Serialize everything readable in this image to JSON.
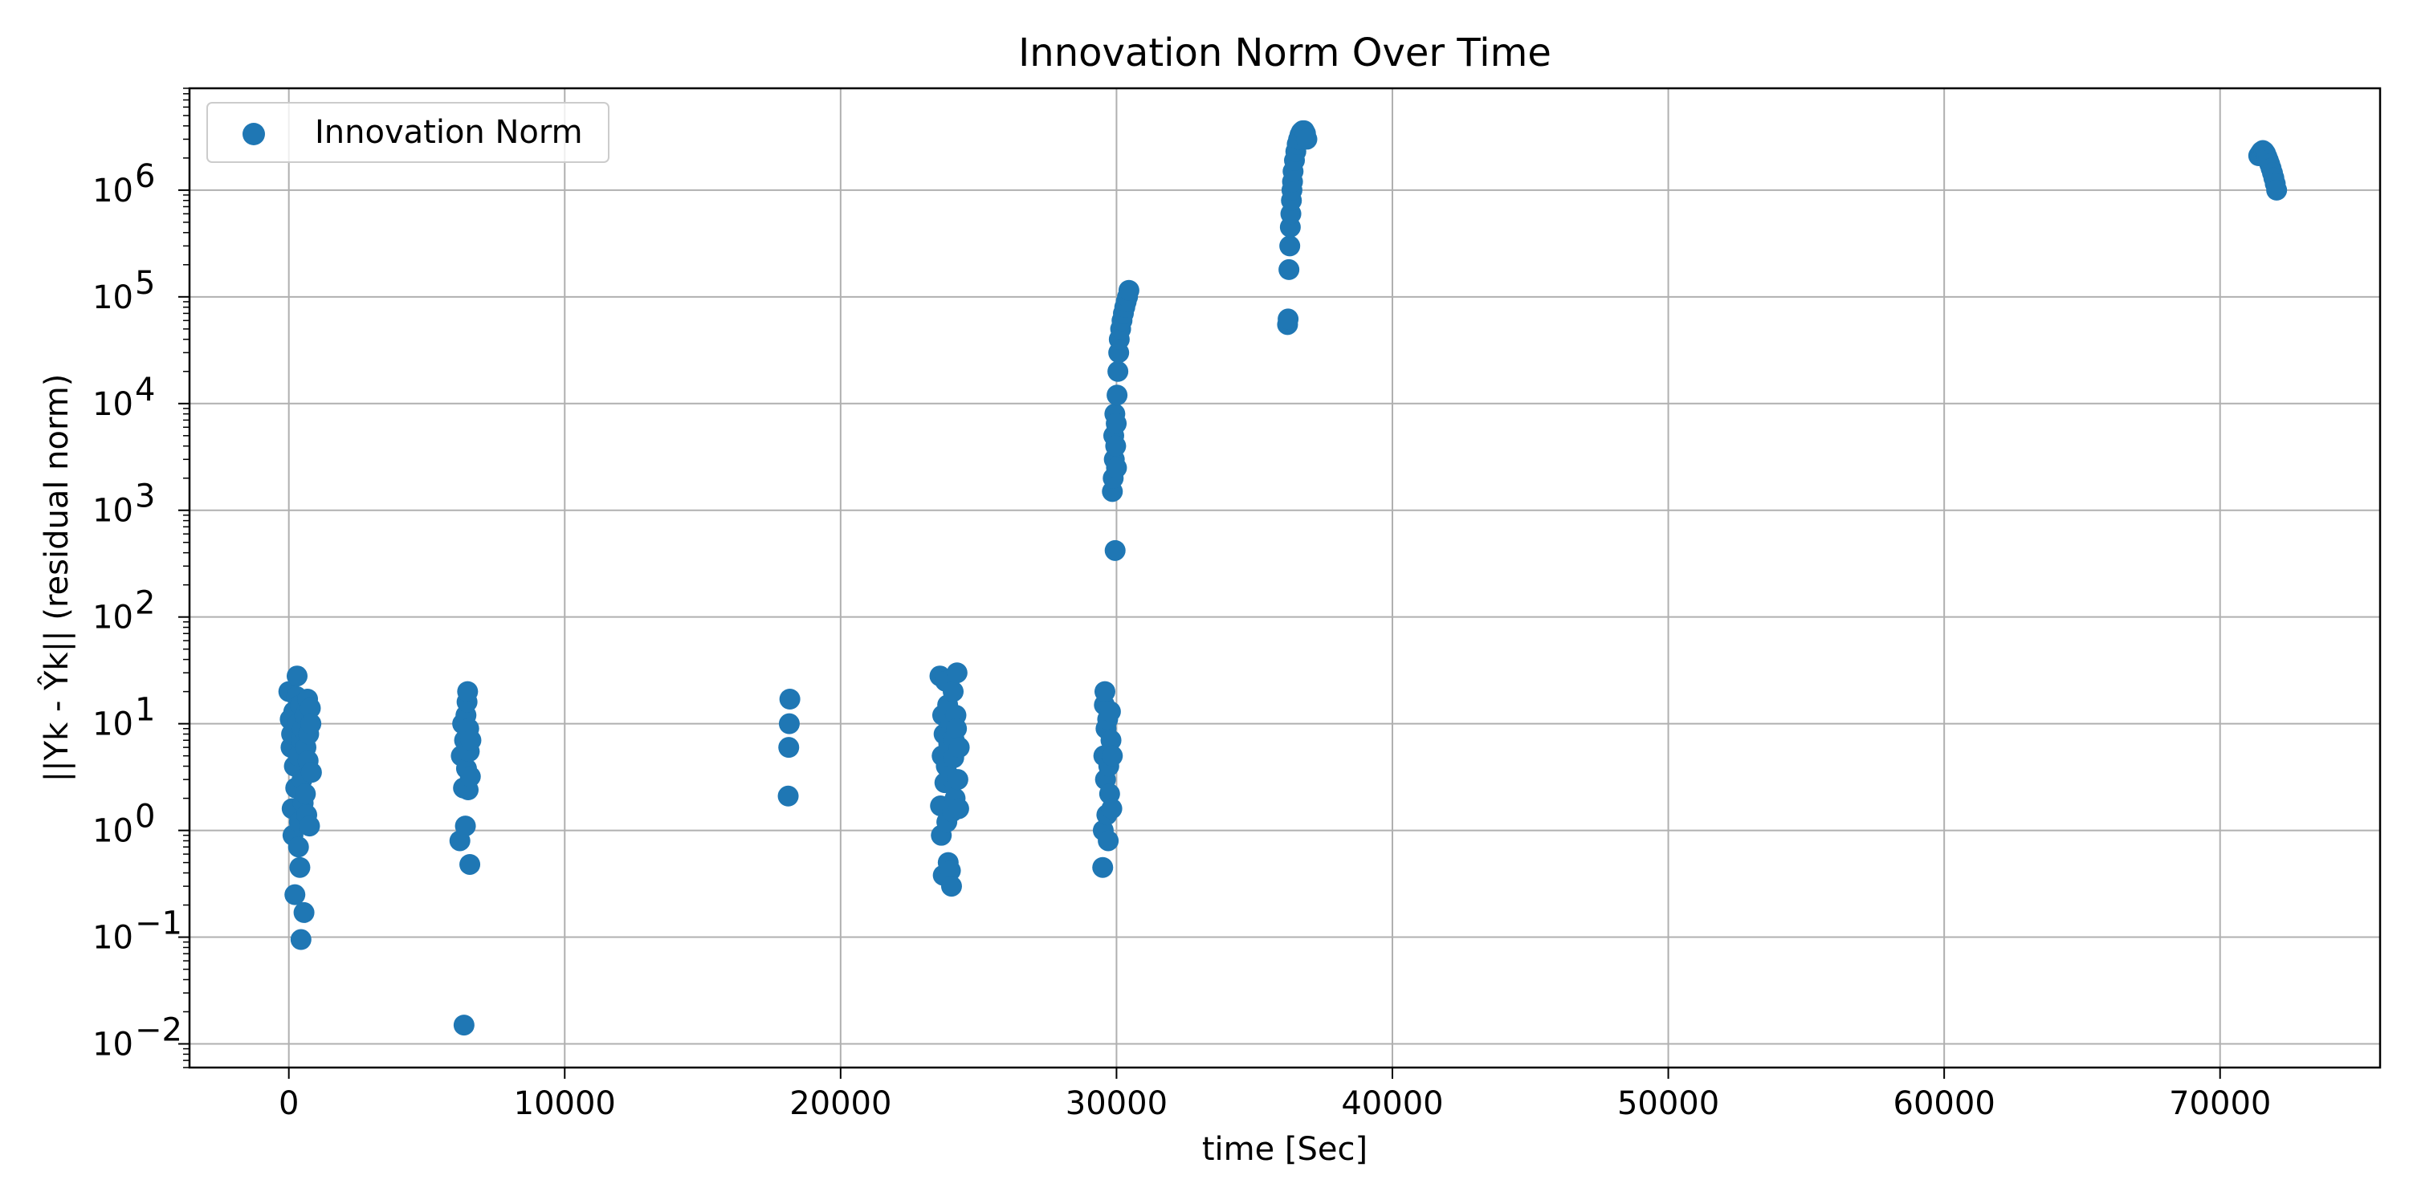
{
  "chart_data": {
    "type": "scatter",
    "title": "Innovation Norm Over Time",
    "xlabel": "time [Sec]",
    "ylabel": "||Yk - Ŷk|| (residual norm)",
    "x_scale": "linear",
    "y_scale": "log",
    "xlim": [
      -3600,
      75800
    ],
    "ylim": [
      0.006,
      9000000
    ],
    "x_ticks": [
      0,
      10000,
      20000,
      30000,
      40000,
      50000,
      60000,
      70000
    ],
    "x_tick_labels": [
      "0",
      "10000",
      "20000",
      "30000",
      "40000",
      "50000",
      "60000",
      "70000"
    ],
    "y_ticks": [
      0.01,
      0.1,
      1,
      10,
      100,
      1000,
      10000,
      100000,
      1000000
    ],
    "y_tick_labels": [
      {
        "base": "10",
        "exp": "−2"
      },
      {
        "base": "10",
        "exp": "−1"
      },
      {
        "base": "10",
        "exp": "0"
      },
      {
        "base": "10",
        "exp": "1"
      },
      {
        "base": "10",
        "exp": "2"
      },
      {
        "base": "10",
        "exp": "3"
      },
      {
        "base": "10",
        "exp": "4"
      },
      {
        "base": "10",
        "exp": "5"
      },
      {
        "base": "10",
        "exp": "6"
      }
    ],
    "grid": true,
    "legend_position": "top-left",
    "color": "#1f77b4",
    "series": [
      {
        "name": "Innovation Norm",
        "points": [
          [
            0,
            20
          ],
          [
            50,
            11
          ],
          [
            80,
            6
          ],
          [
            100,
            8
          ],
          [
            120,
            1.6
          ],
          [
            150,
            0.9
          ],
          [
            180,
            13
          ],
          [
            200,
            4
          ],
          [
            220,
            0.25
          ],
          [
            250,
            2.5
          ],
          [
            280,
            18
          ],
          [
            300,
            28
          ],
          [
            320,
            10
          ],
          [
            340,
            5
          ],
          [
            350,
            0.7
          ],
          [
            380,
            1.2
          ],
          [
            400,
            0.45
          ],
          [
            420,
            15
          ],
          [
            440,
            0.095
          ],
          [
            460,
            7
          ],
          [
            480,
            3
          ],
          [
            500,
            9
          ],
          [
            520,
            1.8
          ],
          [
            550,
            0.17
          ],
          [
            580,
            12
          ],
          [
            600,
            2.2
          ],
          [
            620,
            6
          ],
          [
            650,
            1.4
          ],
          [
            680,
            17
          ],
          [
            700,
            4.5
          ],
          [
            720,
            8
          ],
          [
            750,
            1.1
          ],
          [
            780,
            14
          ],
          [
            800,
            10
          ],
          [
            820,
            3.5
          ],
          [
            6200,
            0.8
          ],
          [
            6250,
            5
          ],
          [
            6300,
            10
          ],
          [
            6330,
            2.5
          ],
          [
            6350,
            0.015
          ],
          [
            6370,
            7
          ],
          [
            6400,
            1.1
          ],
          [
            6420,
            12
          ],
          [
            6440,
            3.8
          ],
          [
            6460,
            16
          ],
          [
            6480,
            20
          ],
          [
            6500,
            2.4
          ],
          [
            6520,
            9
          ],
          [
            6540,
            5.5
          ],
          [
            6560,
            0.48
          ],
          [
            6580,
            3.2
          ],
          [
            6600,
            7
          ],
          [
            18100,
            2.1
          ],
          [
            18120,
            6
          ],
          [
            18140,
            10
          ],
          [
            18160,
            17
          ],
          [
            23600,
            28
          ],
          [
            23620,
            1.7
          ],
          [
            23650,
            0.9
          ],
          [
            23680,
            5
          ],
          [
            23700,
            12
          ],
          [
            23720,
            0.38
          ],
          [
            23750,
            8
          ],
          [
            23780,
            2.8
          ],
          [
            23800,
            25
          ],
          [
            23830,
            4
          ],
          [
            23850,
            1.2
          ],
          [
            23880,
            15
          ],
          [
            23900,
            0.5
          ],
          [
            23920,
            6.5
          ],
          [
            23950,
            3.2
          ],
          [
            23980,
            0.42
          ],
          [
            24000,
            10
          ],
          [
            24020,
            0.3
          ],
          [
            24050,
            1.5
          ],
          [
            24080,
            20
          ],
          [
            24100,
            4.8
          ],
          [
            24120,
            7
          ],
          [
            24150,
            2
          ],
          [
            24180,
            12
          ],
          [
            24200,
            9
          ],
          [
            24220,
            30
          ],
          [
            24250,
            3
          ],
          [
            24280,
            1.6
          ],
          [
            24300,
            6
          ],
          [
            29500,
            0.45
          ],
          [
            29520,
            1
          ],
          [
            29540,
            5
          ],
          [
            29560,
            15
          ],
          [
            29580,
            20
          ],
          [
            29600,
            3
          ],
          [
            29620,
            9
          ],
          [
            29650,
            1.4
          ],
          [
            29680,
            11
          ],
          [
            29700,
            0.8
          ],
          [
            29720,
            4
          ],
          [
            29750,
            2.2
          ],
          [
            29780,
            13
          ],
          [
            29800,
            7
          ],
          [
            29830,
            1.6
          ],
          [
            29850,
            5
          ],
          [
            29850,
            1500
          ],
          [
            29880,
            2000
          ],
          [
            29900,
            5000
          ],
          [
            29920,
            3000
          ],
          [
            29940,
            8000
          ],
          [
            29950,
            420
          ],
          [
            29970,
            4000
          ],
          [
            29990,
            6500
          ],
          [
            30000,
            2500
          ],
          [
            30020,
            12000
          ],
          [
            30050,
            20000
          ],
          [
            30080,
            30000
          ],
          [
            30100,
            40000
          ],
          [
            30150,
            50000
          ],
          [
            30200,
            60000
          ],
          [
            30250,
            70000
          ],
          [
            30300,
            80000
          ],
          [
            30350,
            90000
          ],
          [
            30400,
            100000
          ],
          [
            30450,
            115000
          ],
          [
            36200,
            55000
          ],
          [
            36220,
            62000
          ],
          [
            36250,
            180000
          ],
          [
            36280,
            300000
          ],
          [
            36300,
            450000
          ],
          [
            36320,
            600000
          ],
          [
            36340,
            800000
          ],
          [
            36360,
            1000000
          ],
          [
            36380,
            1200000
          ],
          [
            36400,
            1500000
          ],
          [
            36450,
            1900000
          ],
          [
            36500,
            2300000
          ],
          [
            36550,
            2700000
          ],
          [
            36600,
            3000000
          ],
          [
            36650,
            3300000
          ],
          [
            36700,
            3500000
          ],
          [
            36750,
            3600000
          ],
          [
            36800,
            3600000
          ],
          [
            36850,
            3400000
          ],
          [
            36900,
            3000000
          ],
          [
            71400,
            2100000
          ],
          [
            71450,
            2200000
          ],
          [
            71500,
            2300000
          ],
          [
            71550,
            2350000
          ],
          [
            71600,
            2300000
          ],
          [
            71650,
            2200000
          ],
          [
            71700,
            2050000
          ],
          [
            71750,
            1900000
          ],
          [
            71800,
            1750000
          ],
          [
            71850,
            1600000
          ],
          [
            71900,
            1450000
          ],
          [
            71950,
            1300000
          ],
          [
            72000,
            1150000
          ],
          [
            72050,
            1000000
          ]
        ]
      }
    ]
  }
}
